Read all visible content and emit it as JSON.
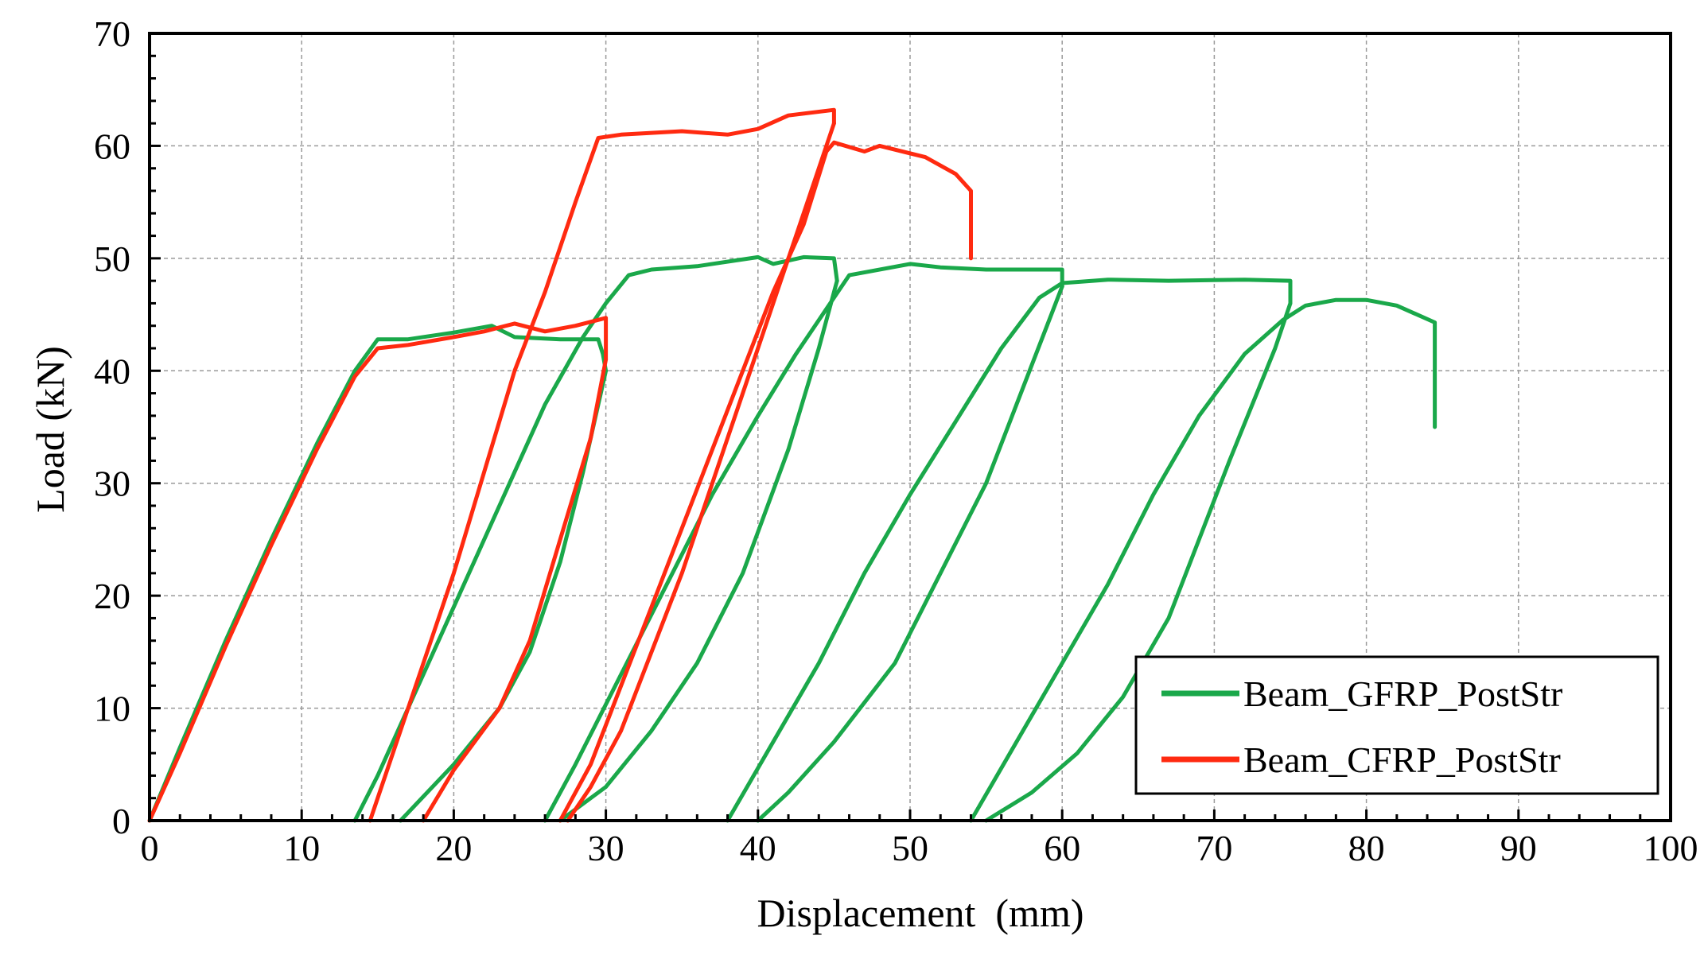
{
  "chart_data": {
    "type": "line",
    "title": "",
    "xlabel": "Displacement  (mm)",
    "ylabel": "Load (kN)",
    "xlim": [
      0,
      100
    ],
    "ylim": [
      0,
      70
    ],
    "xticks": [
      0,
      10,
      20,
      30,
      40,
      50,
      60,
      70,
      80,
      90,
      100
    ],
    "yticks": [
      0,
      10,
      20,
      30,
      40,
      50,
      60,
      70
    ],
    "grid": true,
    "legend_position": "bottom-right",
    "series": [
      {
        "name": "Beam_GFRP_PostStr",
        "color": "#1aa84a",
        "segments": [
          [
            [
              0,
              0
            ],
            [
              2,
              6.5
            ],
            [
              5,
              16
            ],
            [
              8,
              25
            ],
            [
              11,
              33.5
            ],
            [
              13.5,
              40
            ],
            [
              15,
              42.8
            ],
            [
              17,
              42.8
            ],
            [
              20,
              43.4
            ],
            [
              22.5,
              44
            ],
            [
              24,
              43
            ],
            [
              27,
              42.8
            ],
            [
              29.5,
              42.8
            ],
            [
              29.8,
              41.5
            ],
            [
              30,
              40
            ]
          ],
          [
            [
              30,
              40
            ],
            [
              28.5,
              31
            ],
            [
              27,
              23
            ],
            [
              25,
              15
            ],
            [
              23,
              10
            ],
            [
              20,
              5
            ],
            [
              16.5,
              0
            ]
          ],
          [
            [
              13.5,
              0
            ],
            [
              15,
              4
            ],
            [
              17,
              10
            ],
            [
              20,
              19
            ],
            [
              23,
              28
            ],
            [
              26,
              37
            ],
            [
              28.5,
              43
            ],
            [
              30,
              46
            ],
            [
              31.5,
              48.5
            ],
            [
              33,
              49
            ],
            [
              36,
              49.3
            ],
            [
              40,
              50.1
            ],
            [
              41,
              49.5
            ],
            [
              43,
              50.1
            ],
            [
              45,
              50
            ],
            [
              45.2,
              48
            ]
          ],
          [
            [
              45.2,
              48
            ],
            [
              44,
              42
            ],
            [
              42,
              33
            ],
            [
              39,
              22
            ],
            [
              36,
              14
            ],
            [
              33,
              8
            ],
            [
              30,
              3
            ],
            [
              27,
              0
            ]
          ],
          [
            [
              26,
              0
            ],
            [
              28,
              5
            ],
            [
              31,
              13
            ],
            [
              34,
              21
            ],
            [
              37,
              29
            ],
            [
              40,
              36
            ],
            [
              42.5,
              41.5
            ],
            [
              44.5,
              45.5
            ],
            [
              46,
              48.5
            ],
            [
              50,
              49.5
            ],
            [
              52,
              49.2
            ],
            [
              55,
              49
            ],
            [
              60,
              49
            ],
            [
              60,
              47.5
            ]
          ],
          [
            [
              60,
              47.5
            ],
            [
              59,
              44
            ],
            [
              57,
              37
            ],
            [
              55,
              30
            ],
            [
              52,
              22
            ],
            [
              49,
              14
            ],
            [
              45,
              7
            ],
            [
              42,
              2.5
            ],
            [
              40,
              0
            ]
          ],
          [
            [
              38,
              0
            ],
            [
              41,
              7
            ],
            [
              44,
              14
            ],
            [
              47,
              22
            ],
            [
              50,
              29
            ],
            [
              53,
              35.5
            ],
            [
              56,
              42
            ],
            [
              58.5,
              46.5
            ],
            [
              60,
              47.8
            ],
            [
              63,
              48.1
            ],
            [
              67,
              48
            ],
            [
              72,
              48.1
            ],
            [
              75,
              48
            ],
            [
              75,
              46
            ]
          ],
          [
            [
              75,
              46
            ],
            [
              74,
              42
            ],
            [
              72.5,
              37
            ],
            [
              71,
              32
            ],
            [
              69,
              25
            ],
            [
              67,
              18
            ],
            [
              64,
              11
            ],
            [
              61,
              6
            ],
            [
              58,
              2.5
            ],
            [
              55,
              0
            ]
          ],
          [
            [
              54,
              0
            ],
            [
              57,
              7
            ],
            [
              60,
              14
            ],
            [
              63,
              21
            ],
            [
              66,
              29
            ],
            [
              69,
              36
            ],
            [
              72,
              41.5
            ],
            [
              74.5,
              44.5
            ],
            [
              76,
              45.8
            ],
            [
              78,
              46.3
            ],
            [
              80,
              46.3
            ],
            [
              82,
              45.8
            ],
            [
              84.5,
              44.3
            ],
            [
              84.5,
              40
            ],
            [
              84.5,
              35
            ]
          ]
        ]
      },
      {
        "name": "Beam_CFRP_PostStr",
        "color": "#ff2a10",
        "segments": [
          [
            [
              0,
              0
            ],
            [
              2,
              6
            ],
            [
              5,
              15.5
            ],
            [
              8,
              24.5
            ],
            [
              11,
              33
            ],
            [
              13.5,
              39.5
            ],
            [
              15,
              42
            ],
            [
              17,
              42.3
            ],
            [
              20,
              43
            ],
            [
              22,
              43.5
            ],
            [
              24,
              44.2
            ],
            [
              26,
              43.5
            ],
            [
              28,
              44
            ],
            [
              30,
              44.7
            ],
            [
              30,
              41
            ]
          ],
          [
            [
              30,
              41
            ],
            [
              29,
              34
            ],
            [
              27,
              25
            ],
            [
              25,
              16
            ],
            [
              23,
              10
            ],
            [
              20,
              4.5
            ],
            [
              18,
              0
            ]
          ],
          [
            [
              14.5,
              0
            ],
            [
              16,
              6
            ],
            [
              18,
              14
            ],
            [
              20,
              22
            ],
            [
              22,
              31
            ],
            [
              24,
              40
            ],
            [
              26,
              47
            ],
            [
              28,
              55
            ],
            [
              29.5,
              60.7
            ],
            [
              31,
              61
            ],
            [
              35,
              61.3
            ],
            [
              38,
              61
            ],
            [
              40,
              61.5
            ],
            [
              42,
              62.7
            ],
            [
              45,
              63.2
            ],
            [
              45,
              62
            ]
          ],
          [
            [
              45,
              62
            ],
            [
              43,
              54
            ],
            [
              41,
              46
            ],
            [
              39,
              38
            ],
            [
              37,
              30
            ],
            [
              35,
              22
            ],
            [
              33,
              15
            ],
            [
              31,
              8
            ],
            [
              29,
              3
            ],
            [
              27.5,
              0
            ]
          ],
          [
            [
              27,
              0
            ],
            [
              29,
              5
            ],
            [
              31,
              12
            ],
            [
              33,
              19
            ],
            [
              35,
              26
            ],
            [
              37,
              33
            ],
            [
              39,
              40
            ],
            [
              41,
              47
            ],
            [
              43,
              53
            ],
            [
              44.5,
              59.5
            ],
            [
              45,
              60.3
            ],
            [
              47,
              59.5
            ],
            [
              48,
              60
            ],
            [
              51,
              59
            ],
            [
              53,
              57.5
            ],
            [
              54,
              56
            ],
            [
              54,
              50
            ]
          ]
        ]
      }
    ]
  }
}
